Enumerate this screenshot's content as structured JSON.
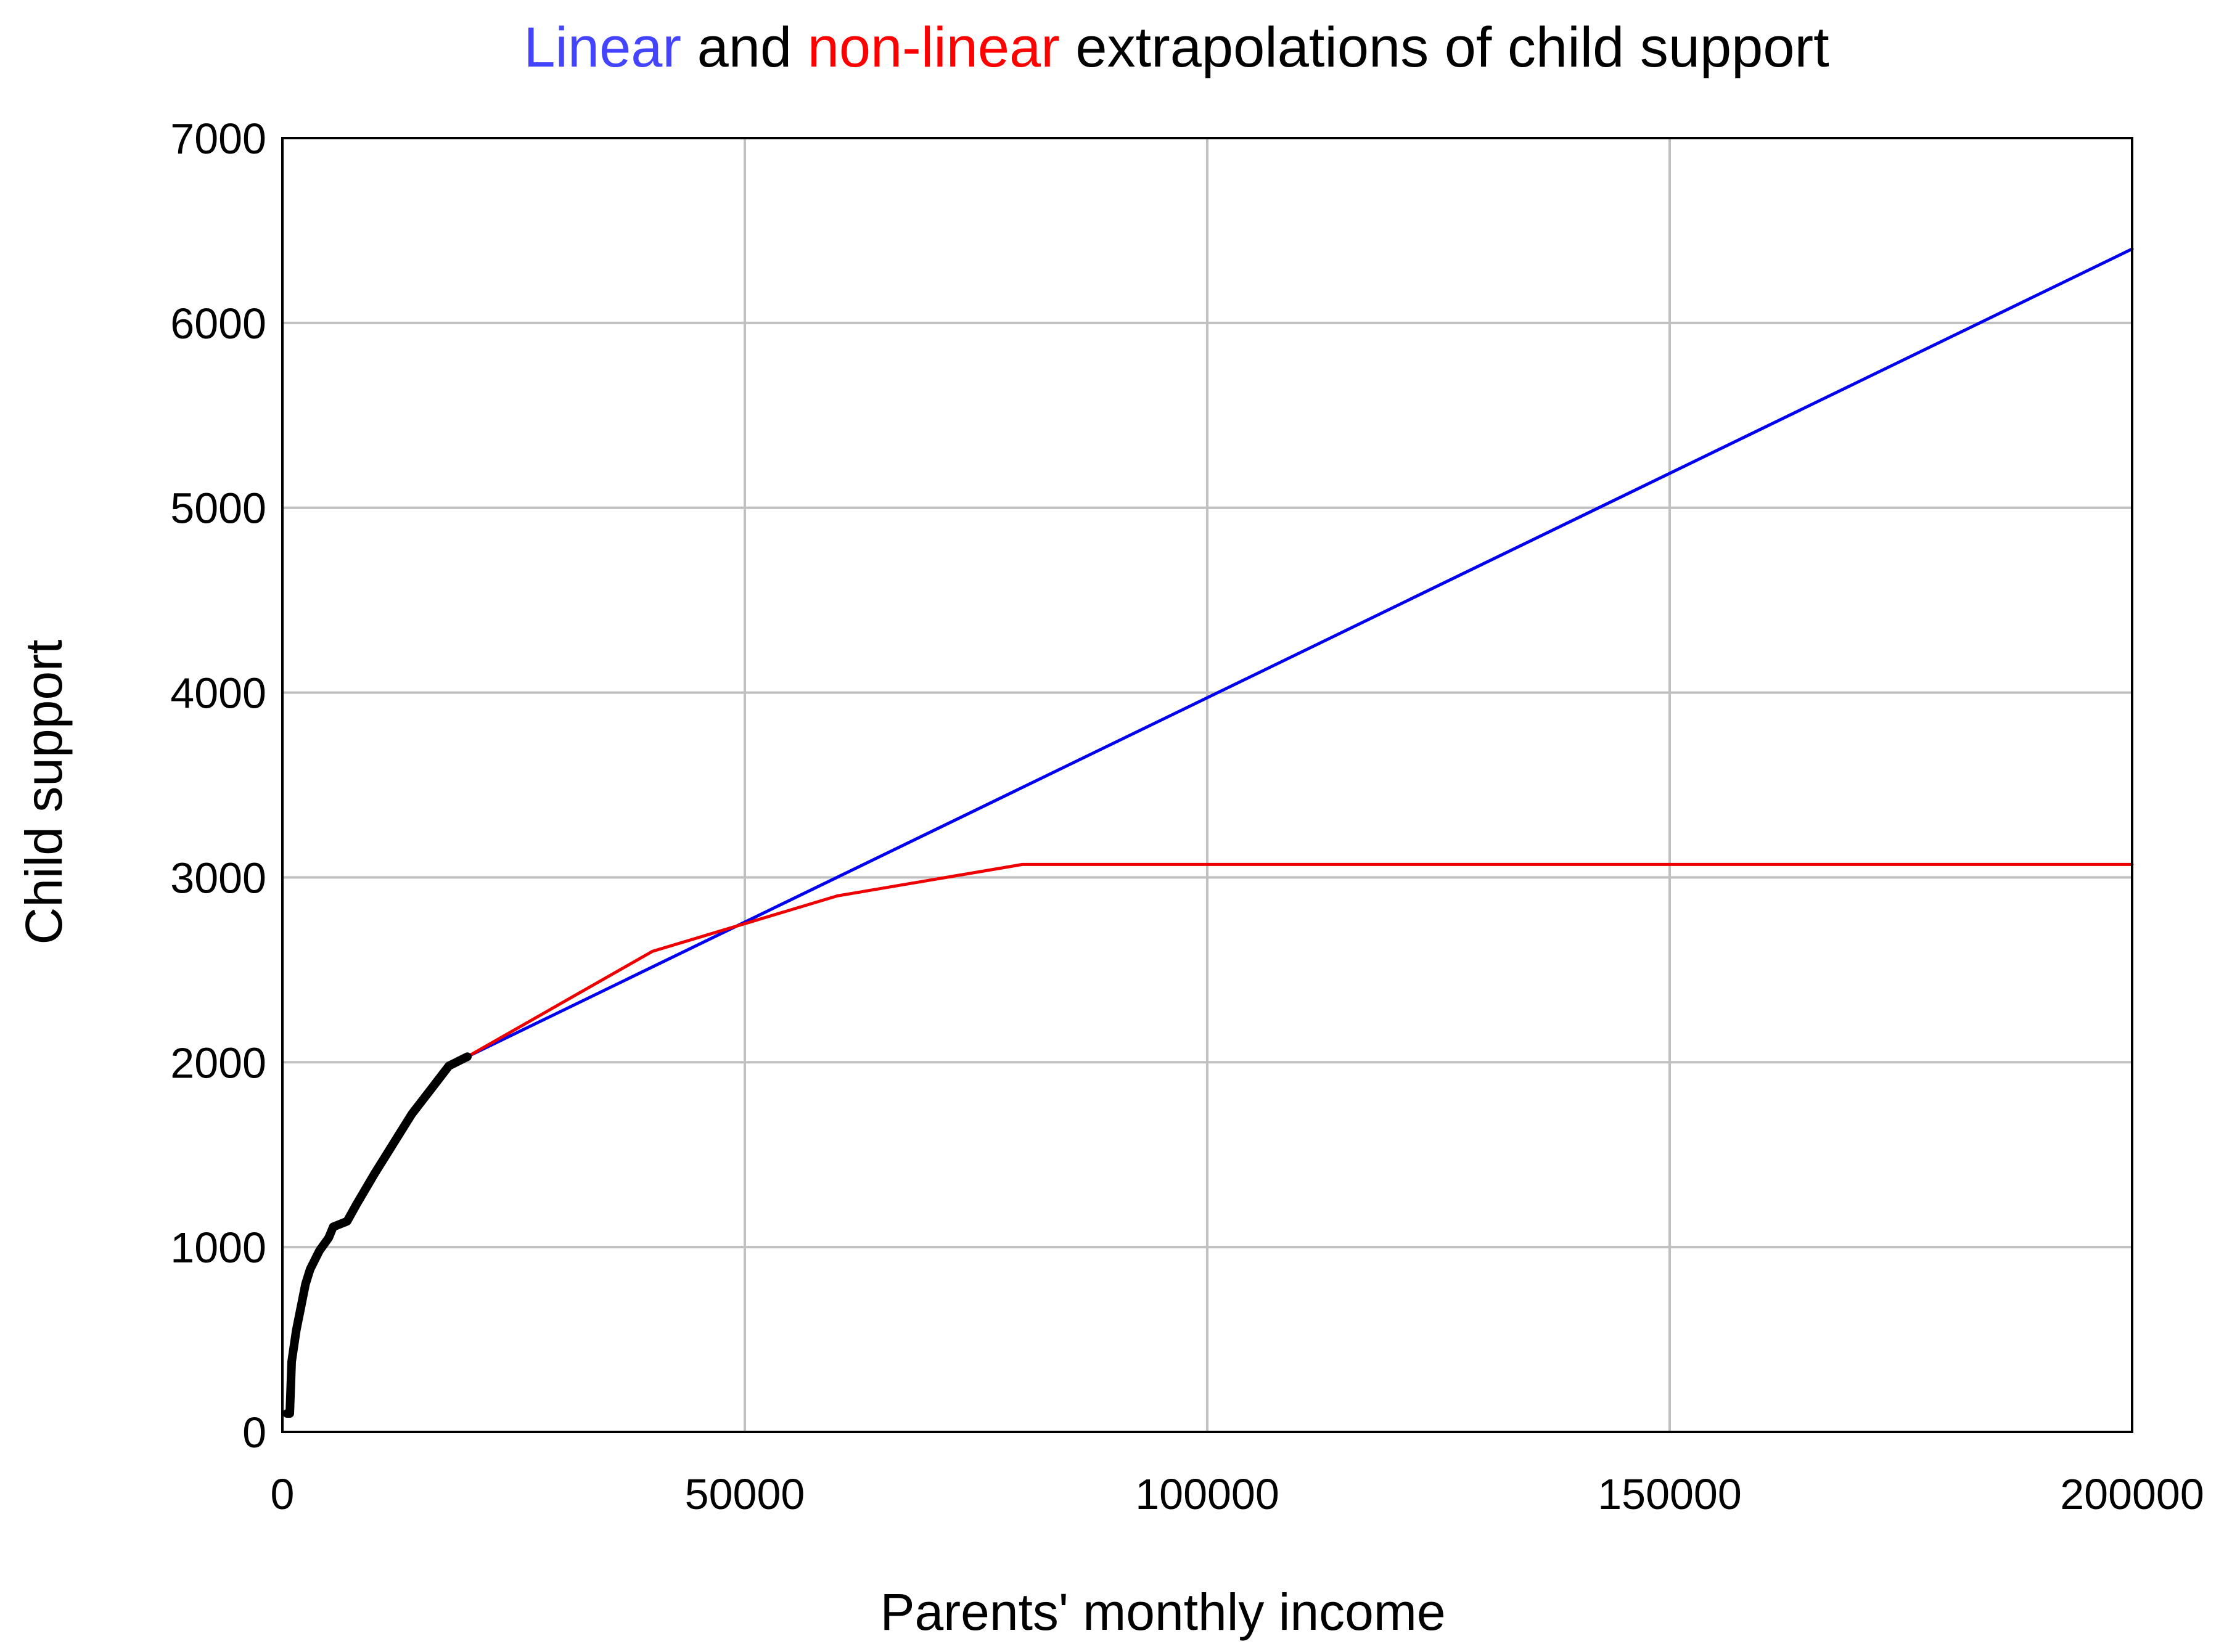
{
  "title": {
    "part1": "Linear",
    "part2": " and ",
    "part3": "non-linear",
    "part4": " extrapolations of child support",
    "color_linear": "#4444ff",
    "color_nonlinear": "#ff0000",
    "color_rest": "#000000"
  },
  "chart_data": {
    "type": "line",
    "title": "Linear and non-linear extrapolations of child support",
    "xlabel": "Parents' monthly income",
    "ylabel": "Child support",
    "xlim": [
      0,
      200000
    ],
    "ylim": [
      0,
      7000
    ],
    "xticks": [
      0,
      50000,
      100000,
      150000,
      200000
    ],
    "yticks": [
      0,
      1000,
      2000,
      3000,
      4000,
      5000,
      6000,
      7000
    ],
    "grid": true,
    "series": [
      {
        "color": "#0000ee",
        "x": [
          20000,
          200000
        ],
        "y": [
          2030,
          6400
        ]
      },
      {
        "color": "#ee0000",
        "x": [
          20000,
          40000,
          60000,
          80000,
          200000
        ],
        "y": [
          2030,
          2600,
          2900,
          3070,
          3070
        ]
      },
      {
        "color": "#000000",
        "x": [
          500,
          800,
          1000,
          1500,
          2500,
          3000,
          4000,
          5000,
          5500,
          6000,
          7000,
          8000,
          10000,
          12000,
          14000,
          16000,
          18000,
          20000
        ],
        "y": [
          100,
          100,
          380,
          550,
          800,
          880,
          980,
          1050,
          1110,
          1120,
          1140,
          1230,
          1400,
          1560,
          1720,
          1850,
          1980,
          2030
        ]
      }
    ]
  }
}
